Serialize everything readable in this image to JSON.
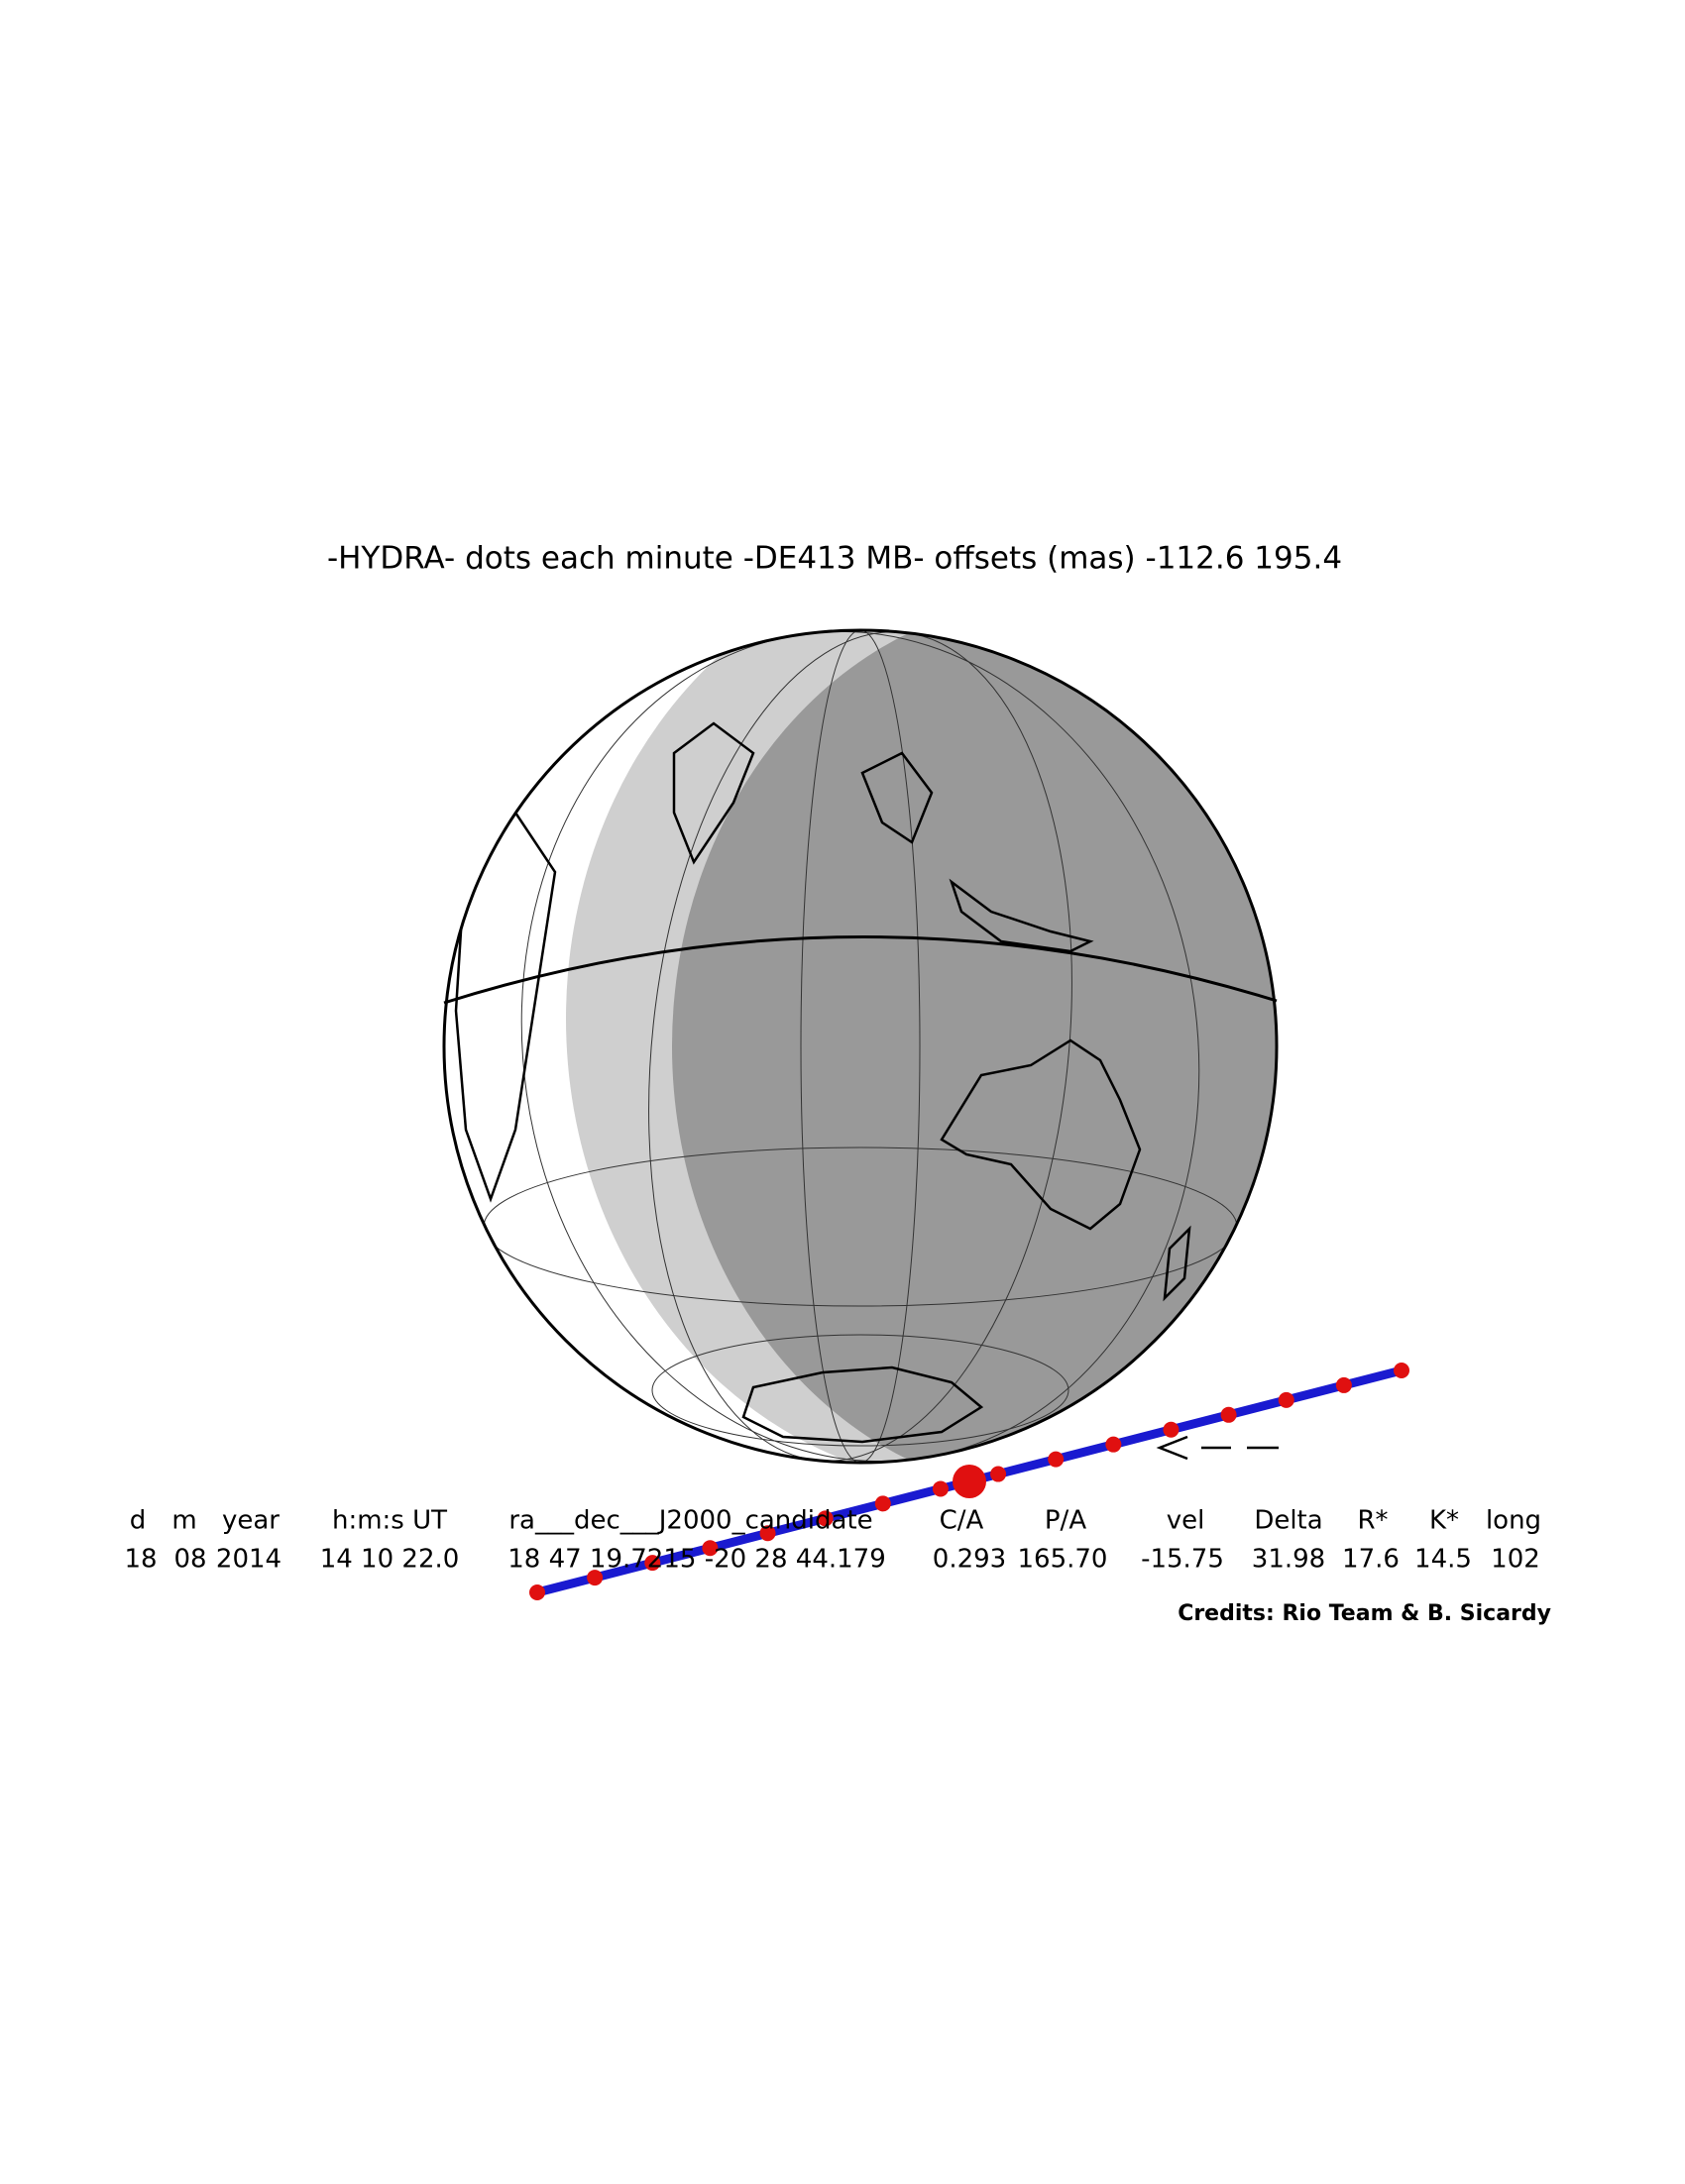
{
  "title": "-HYDRA- dots each minute -DE413 MB- offsets (mas) -112.6   195.4",
  "table": {
    "headers": [
      "d",
      "m",
      "year",
      "h:m:s UT",
      "ra___dec___J2000_candidate",
      "C/A",
      "P/A",
      "vel",
      "Delta",
      "R*",
      "K*",
      "long"
    ],
    "rows": [
      [
        "18",
        "08",
        "2014",
        "14 10 22.0",
        "18 47 19.7215 -20 28 44.179",
        "0.293",
        "165.70",
        "-15.75",
        "31.98",
        "17.6",
        "14.5",
        "102"
      ]
    ]
  },
  "credits": "Credits: Rio Team & B. Sicardy"
}
